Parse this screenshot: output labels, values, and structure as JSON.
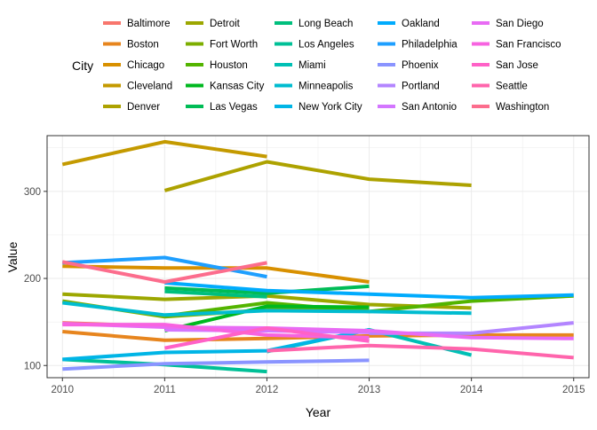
{
  "chart_data": {
    "type": "line",
    "xlabel": "Year",
    "ylabel": "Value",
    "xlim": [
      2009.85,
      2015.15
    ],
    "ylim": [
      86,
      364
    ],
    "x_ticks": [
      2010,
      2011,
      2012,
      2013,
      2014,
      2015
    ],
    "y_ticks": [
      100,
      200,
      300
    ],
    "grid": true,
    "legend": {
      "title": "City",
      "position": "top",
      "columns": 5
    },
    "series": [
      {
        "name": "Baltimore",
        "color": "#F8766D",
        "points": [
          [
            2010,
            149
          ],
          [
            2011,
            145
          ],
          [
            2012,
            140
          ]
        ]
      },
      {
        "name": "Boston",
        "color": "#E7851E",
        "points": [
          [
            2010,
            139
          ],
          [
            2011,
            129
          ],
          [
            2012,
            131
          ],
          [
            2013,
            134
          ],
          [
            2014,
            135
          ],
          [
            2015,
            135
          ]
        ]
      },
      {
        "name": "Chicago",
        "color": "#D89000",
        "points": [
          [
            2010,
            214
          ],
          [
            2011,
            212
          ],
          [
            2012,
            212
          ],
          [
            2013,
            196
          ]
        ]
      },
      {
        "name": "Cleveland",
        "color": "#C49A00",
        "points": [
          [
            2010,
            331
          ],
          [
            2011,
            357
          ],
          [
            2012,
            340
          ]
        ]
      },
      {
        "name": "Denver",
        "color": "#ADA200",
        "points": [
          [
            2011,
            301
          ],
          [
            2012,
            334
          ],
          [
            2013,
            314
          ],
          [
            2014,
            307
          ]
        ]
      },
      {
        "name": "Detroit",
        "color": "#9CA700",
        "points": [
          [
            2010,
            182
          ],
          [
            2011,
            176
          ],
          [
            2012,
            180
          ],
          [
            2013,
            170
          ],
          [
            2014,
            166
          ]
        ]
      },
      {
        "name": "Fort Worth",
        "color": "#7DAE00",
        "points": [
          [
            2010,
            174
          ],
          [
            2011,
            156
          ],
          [
            2012,
            164
          ],
          [
            2013,
            165
          ]
        ]
      },
      {
        "name": "Houston",
        "color": "#53B400",
        "points": [
          [
            2011,
            157
          ],
          [
            2012,
            172
          ],
          [
            2013,
            162
          ],
          [
            2014,
            174
          ],
          [
            2015,
            180
          ]
        ]
      },
      {
        "name": "Kansas City",
        "color": "#00B81F",
        "points": [
          [
            2011,
            140
          ],
          [
            2012,
            168
          ],
          [
            2013,
            167
          ]
        ]
      },
      {
        "name": "Las Vegas",
        "color": "#00BC56",
        "points": [
          [
            2011,
            189
          ],
          [
            2012,
            183
          ],
          [
            2013,
            191
          ]
        ]
      },
      {
        "name": "Long Beach",
        "color": "#00BF7D",
        "points": [
          [
            2011,
            185
          ],
          [
            2012,
            179
          ]
        ]
      },
      {
        "name": "Los Angeles",
        "color": "#00C097",
        "points": [
          [
            2010,
            107
          ],
          [
            2011,
            101
          ],
          [
            2012,
            93
          ]
        ]
      },
      {
        "name": "Miami",
        "color": "#00C0B5",
        "points": [
          [
            2012,
            116
          ],
          [
            2013,
            141
          ],
          [
            2014,
            112
          ]
        ]
      },
      {
        "name": "Minneapolis",
        "color": "#00BCD0",
        "points": [
          [
            2010,
            172
          ],
          [
            2011,
            158
          ],
          [
            2012,
            163
          ],
          [
            2013,
            162
          ],
          [
            2014,
            160
          ]
        ]
      },
      {
        "name": "New York City",
        "color": "#00B5E6",
        "points": [
          [
            2010,
            107
          ],
          [
            2011,
            115
          ],
          [
            2012,
            117
          ],
          [
            2013,
            141
          ]
        ]
      },
      {
        "name": "Oakland",
        "color": "#00ABFD",
        "points": [
          [
            2011,
            195
          ],
          [
            2012,
            186
          ],
          [
            2013,
            182
          ],
          [
            2014,
            178
          ],
          [
            2015,
            181
          ]
        ]
      },
      {
        "name": "Philadelphia",
        "color": "#1E9FFF",
        "points": [
          [
            2010,
            218
          ],
          [
            2011,
            224
          ],
          [
            2012,
            202
          ]
        ]
      },
      {
        "name": "Phoenix",
        "color": "#8A94FF",
        "points": [
          [
            2010,
            96
          ],
          [
            2011,
            102
          ],
          [
            2012,
            104
          ],
          [
            2013,
            106
          ]
        ]
      },
      {
        "name": "Portland",
        "color": "#B385FF",
        "points": [
          [
            2013,
            137
          ],
          [
            2014,
            137
          ],
          [
            2015,
            149
          ]
        ]
      },
      {
        "name": "San Antonio",
        "color": "#D376FF",
        "points": [
          [
            2011,
            141
          ],
          [
            2012,
            140
          ],
          [
            2013,
            138
          ]
        ]
      },
      {
        "name": "San Diego",
        "color": "#E86BF4",
        "points": [
          [
            2010,
            148
          ],
          [
            2011,
            144
          ],
          [
            2012,
            143
          ],
          [
            2013,
            140
          ],
          [
            2014,
            132
          ],
          [
            2015,
            131
          ]
        ]
      },
      {
        "name": "San Francisco",
        "color": "#F763E0",
        "points": [
          [
            2010,
            147
          ],
          [
            2011,
            147
          ],
          [
            2012,
            135
          ],
          [
            2013,
            132
          ]
        ]
      },
      {
        "name": "San Jose",
        "color": "#FF61C7",
        "points": [
          [
            2011,
            120
          ],
          [
            2012,
            143
          ],
          [
            2013,
            128
          ]
        ]
      },
      {
        "name": "Seattle",
        "color": "#FF65AC",
        "points": [
          [
            2012,
            117
          ],
          [
            2013,
            123
          ],
          [
            2014,
            119
          ],
          [
            2015,
            109
          ]
        ]
      },
      {
        "name": "Washington",
        "color": "#FC6D8D",
        "points": [
          [
            2010,
            219
          ],
          [
            2011,
            196
          ],
          [
            2012,
            218
          ]
        ]
      }
    ]
  }
}
